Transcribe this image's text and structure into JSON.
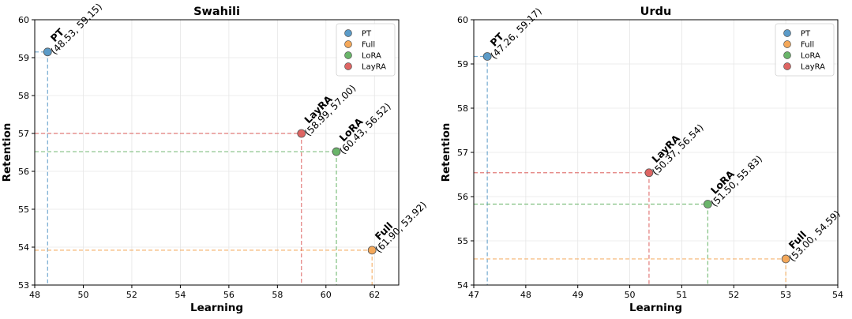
{
  "chart_data": [
    {
      "type": "scatter",
      "title": "Swahili",
      "xlabel": "Learning",
      "ylabel": "Retention",
      "xlim": [
        48,
        63
      ],
      "ylim": [
        53,
        60
      ],
      "xticks": [
        48,
        50,
        52,
        54,
        56,
        58,
        60,
        62
      ],
      "yticks": [
        53,
        54,
        55,
        56,
        57,
        58,
        59,
        60
      ],
      "grid": true,
      "legend_position": "top-right",
      "series": [
        {
          "name": "PT",
          "color": "#5b9bc8",
          "x": 48.53,
          "y": 59.15,
          "coord_label": "(48.53, 59.15)"
        },
        {
          "name": "Full",
          "color": "#f4a85a",
          "x": 61.9,
          "y": 53.92,
          "coord_label": "(61.90, 53.92)"
        },
        {
          "name": "LoRA",
          "color": "#6ab56a",
          "x": 60.43,
          "y": 56.52,
          "coord_label": "(60.43, 56.52)"
        },
        {
          "name": "LayRA",
          "color": "#de6563",
          "x": 58.99,
          "y": 57.0,
          "coord_label": "(58.99, 57.00)"
        }
      ]
    },
    {
      "type": "scatter",
      "title": "Urdu",
      "xlabel": "Learning",
      "ylabel": "Retention",
      "xlim": [
        47,
        54
      ],
      "ylim": [
        54,
        60
      ],
      "xticks": [
        47,
        48,
        49,
        50,
        51,
        52,
        53,
        54
      ],
      "yticks": [
        54,
        55,
        56,
        57,
        58,
        59,
        60
      ],
      "grid": true,
      "legend_position": "top-right",
      "series": [
        {
          "name": "PT",
          "color": "#5b9bc8",
          "x": 47.26,
          "y": 59.17,
          "coord_label": "(47.26, 59.17)"
        },
        {
          "name": "Full",
          "color": "#f4a85a",
          "x": 53.0,
          "y": 54.59,
          "coord_label": "(53.00, 54.59)"
        },
        {
          "name": "LoRA",
          "color": "#6ab56a",
          "x": 51.5,
          "y": 55.83,
          "coord_label": "(51.50, 55.83)"
        },
        {
          "name": "LayRA",
          "color": "#de6563",
          "x": 50.37,
          "y": 56.54,
          "coord_label": "(50.37, 56.54)"
        }
      ]
    }
  ]
}
